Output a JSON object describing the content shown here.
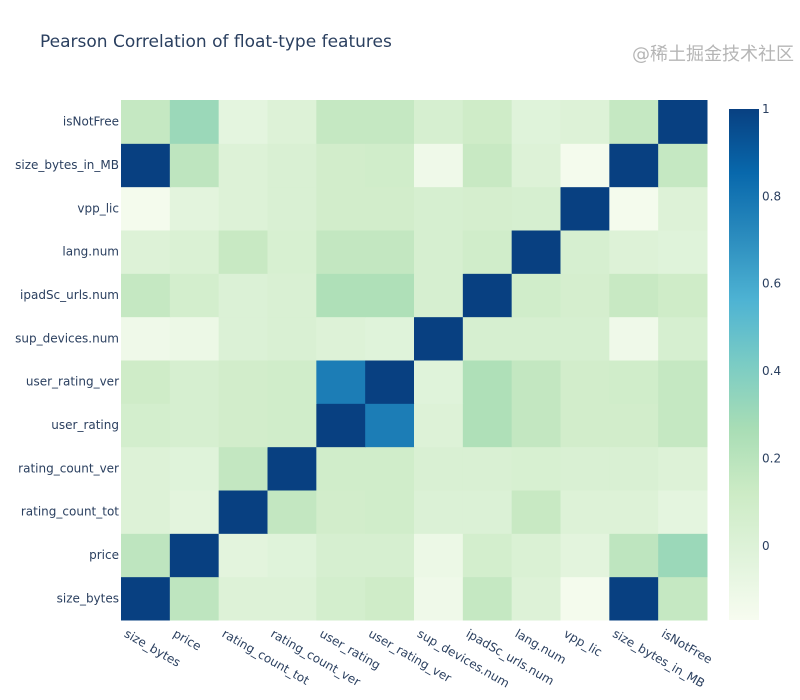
{
  "chart_data": {
    "type": "heatmap",
    "title": "Pearson Correlation of float-type features",
    "xlabel": "",
    "ylabel": "",
    "x": [
      "size_bytes",
      "price",
      "rating_count_tot",
      "rating_count_ver",
      "user_rating",
      "user_rating_ver",
      "sup_devices.num",
      "ipadSc_urls.num",
      "lang.num",
      "vpp_lic",
      "size_bytes_in_MB",
      "isNotFree"
    ],
    "y": [
      "size_bytes",
      "price",
      "rating_count_tot",
      "rating_count_ver",
      "user_rating",
      "user_rating_ver",
      "sup_devices.num",
      "ipadSc_urls.num",
      "lang.num",
      "vpp_lic",
      "size_bytes_in_MB",
      "isNotFree"
    ],
    "z": [
      [
        1.0,
        0.18,
        0.0,
        0.0,
        0.07,
        0.1,
        -0.12,
        0.15,
        0.0,
        -0.15,
        1.0,
        0.15
      ],
      [
        0.18,
        1.0,
        -0.04,
        -0.02,
        0.05,
        0.05,
        -0.1,
        0.07,
        0.02,
        -0.04,
        0.18,
        0.31
      ],
      [
        0.0,
        -0.04,
        1.0,
        0.16,
        0.08,
        0.09,
        0.01,
        0.01,
        0.14,
        0.0,
        0.0,
        -0.05
      ],
      [
        0.0,
        -0.02,
        0.16,
        1.0,
        0.09,
        0.09,
        0.03,
        0.03,
        0.04,
        0.03,
        0.03,
        0.0
      ],
      [
        0.07,
        0.05,
        0.08,
        0.09,
        1.0,
        0.77,
        0.0,
        0.24,
        0.16,
        0.08,
        0.08,
        0.15
      ],
      [
        0.1,
        0.05,
        0.08,
        0.09,
        0.77,
        1.0,
        -0.02,
        0.24,
        0.16,
        0.08,
        0.09,
        0.15
      ],
      [
        -0.12,
        -0.1,
        0.01,
        0.03,
        0.0,
        -0.02,
        1.0,
        0.05,
        0.05,
        0.05,
        -0.12,
        0.05
      ],
      [
        0.15,
        0.07,
        0.01,
        0.03,
        0.24,
        0.24,
        0.05,
        1.0,
        0.09,
        0.06,
        0.14,
        0.1
      ],
      [
        0.0,
        0.02,
        0.14,
        0.04,
        0.16,
        0.16,
        0.05,
        0.09,
        1.0,
        0.05,
        0.0,
        -0.02
      ],
      [
        -0.15,
        -0.04,
        0.0,
        0.03,
        0.08,
        0.08,
        0.05,
        0.06,
        0.05,
        1.0,
        -0.15,
        0.0
      ],
      [
        1.0,
        0.18,
        0.0,
        0.03,
        0.08,
        0.09,
        -0.12,
        0.14,
        0.0,
        -0.15,
        1.0,
        0.15
      ],
      [
        0.15,
        0.31,
        -0.05,
        0.0,
        0.15,
        0.15,
        0.05,
        0.1,
        -0.02,
        0.0,
        0.15,
        1.0
      ]
    ],
    "zrange": [
      -0.17,
      1
    ],
    "colorscale": "GnBu",
    "colorbar": {
      "ticks": [
        0,
        0.2,
        0.4,
        0.6,
        0.8,
        1
      ],
      "tick_labels": [
        "0",
        "0.2",
        "0.4",
        "0.6",
        "0.8",
        "1"
      ],
      "placement": "right"
    },
    "colorscale_stops": [
      [
        0.0,
        "#f7fcf0"
      ],
      [
        0.125,
        "#e0f3db"
      ],
      [
        0.25,
        "#ccebc5"
      ],
      [
        0.375,
        "#a8ddb5"
      ],
      [
        0.5,
        "#7bccc4"
      ],
      [
        0.625,
        "#4eb3d3"
      ],
      [
        0.75,
        "#2b8cbe"
      ],
      [
        0.875,
        "#0868ac"
      ],
      [
        1.0,
        "#084081"
      ]
    ],
    "grid": false
  },
  "watermark": "@稀土掘金技术社区"
}
